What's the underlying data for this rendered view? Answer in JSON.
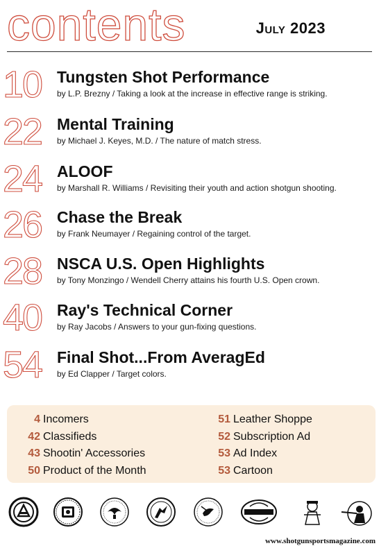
{
  "header": {
    "section_title": "contents",
    "issue_date": "July 2023"
  },
  "articles": [
    {
      "page": "10",
      "title": "Tungsten Shot Performance",
      "byline": "by L.P. Brezny / Taking a look at the increase in effective range is striking."
    },
    {
      "page": "22",
      "title": "Mental Training",
      "byline": "by Michael J. Keyes, M.D. / The nature of match stress."
    },
    {
      "page": "24",
      "title": "ALOOF",
      "byline": "by Marshall R. Williams / Revisiting their youth and action shotgun shooting."
    },
    {
      "page": "26",
      "title": "Chase the Break",
      "byline": "by Frank Neumayer / Regaining control of the target."
    },
    {
      "page": "28",
      "title": "NSCA U.S. Open Highlights",
      "byline": "by Tony Monzingo / Wendell Cherry attains his fourth U.S. Open crown."
    },
    {
      "page": "40",
      "title": "Ray's Technical Corner",
      "byline": "by Ray Jacobs / Answers to your gun-fixing questions."
    },
    {
      "page": "54",
      "title": "Final Shot...From AveragEd",
      "byline": "by Ed Clapper / Target colors."
    }
  ],
  "departments": {
    "left": [
      {
        "page": "4",
        "label": "Incomers"
      },
      {
        "page": "42",
        "label": "Classifieds"
      },
      {
        "page": "43",
        "label": "Shootin' Accessories"
      },
      {
        "page": "50",
        "label": "Product of the Month"
      }
    ],
    "right": [
      {
        "page": "51",
        "label": "Leather Shoppe"
      },
      {
        "page": "52",
        "label": "Subscription Ad"
      },
      {
        "page": "53",
        "label": "Ad Index"
      },
      {
        "page": "53",
        "label": "Cartoon"
      }
    ]
  },
  "footer": {
    "website": "www.shotgunsportsmagazine.com",
    "logos": [
      "association-seal-icon",
      "club-emblem-icon",
      "eagle-seal-icon",
      "shooter-seal-icon",
      "bird-seal-icon",
      "shooting-sports-badge-icon",
      "mascot-icon",
      "trap-shooter-icon"
    ]
  },
  "colors": {
    "accent": "#cf4e3e",
    "department_page": "#b35a3c",
    "department_bg": "#fbeede"
  }
}
